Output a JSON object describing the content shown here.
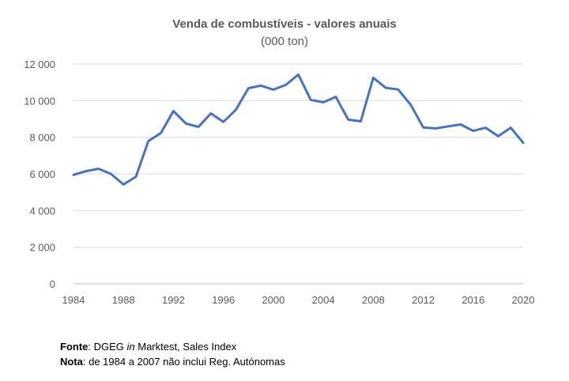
{
  "chart_data": {
    "type": "line",
    "title": "Venda de combustíveis - valores anuais",
    "subtitle": "(000 ton)",
    "xlabel": "",
    "ylabel": "",
    "xlim": [
      1984,
      2020
    ],
    "ylim": [
      0,
      12000
    ],
    "x_ticks": [
      1984,
      1988,
      1992,
      1996,
      2000,
      2004,
      2008,
      2012,
      2016,
      2020
    ],
    "y_ticks": [
      0,
      2000,
      4000,
      6000,
      8000,
      10000,
      12000
    ],
    "y_tick_labels": [
      "0",
      "2 000",
      "4 000",
      "6 000",
      "8 000",
      "10 000",
      "12 000"
    ],
    "grid": "horizontal",
    "legend": "none",
    "series": [
      {
        "color": "#4472C4",
        "x": [
          1984,
          1985,
          1986,
          1987,
          1988,
          1989,
          1990,
          1991,
          1992,
          1993,
          1994,
          1995,
          1996,
          1997,
          1998,
          1999,
          2000,
          2001,
          2002,
          2003,
          2004,
          2005,
          2006,
          2007,
          2008,
          2009,
          2010,
          2011,
          2012,
          2013,
          2014,
          2015,
          2016,
          2017,
          2018,
          2019,
          2020
        ],
        "values": [
          5950,
          6150,
          6280,
          6000,
          5420,
          5850,
          7800,
          8230,
          9430,
          8750,
          8570,
          9300,
          8840,
          9500,
          10680,
          10820,
          10600,
          10860,
          11420,
          10040,
          9910,
          10210,
          8960,
          8870,
          11250,
          10700,
          10610,
          9770,
          8540,
          8480,
          8600,
          8700,
          8350,
          8520,
          8060,
          8520,
          7700
        ]
      }
    ]
  },
  "notes": {
    "source_label": "Fonte",
    "source_text_1": ": DGEG ",
    "source_italic": "in",
    "source_text_2": " Marktest, Sales Index",
    "note_label": "Nota",
    "note_text": ": de 1984 a 2007 não inclui Reg. Autónomas"
  }
}
